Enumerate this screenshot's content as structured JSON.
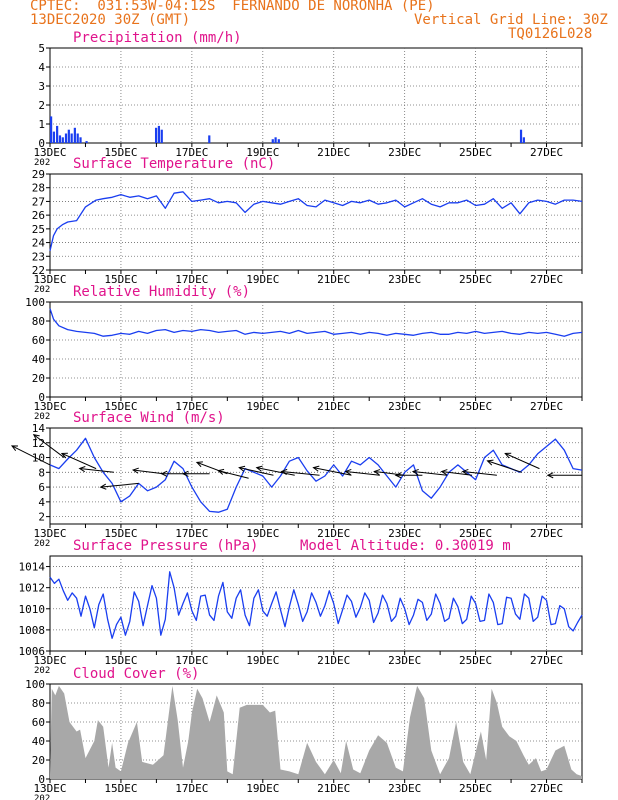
{
  "header": {
    "line1": "CPTEC:  031:53W-04:12S  FERNANDO DE NORONHA (PE)",
    "date": "13DEC2020 30Z (GMT)",
    "grid_note": "Vertical Grid Line: 30Z",
    "code": "TQ0126L028"
  },
  "colors": {
    "header": "#e8731c",
    "title": "#e0148c",
    "line": "#1a3ef0",
    "bar": "#1a3ef0",
    "cloud": "#a8a8a8",
    "grid": "#6e6e6e",
    "arrow": "#000000"
  },
  "x_ticks": [
    "13DEC",
    "15DEC",
    "17DEC",
    "19DEC",
    "21DEC",
    "23DEC",
    "25DEC",
    "27DEC"
  ],
  "x_stub": "202",
  "chart_data": [
    {
      "id": "precip",
      "type": "bar",
      "title": "Precipitation (mm/h)",
      "ylim": [
        0,
        5
      ],
      "yticks": [
        0,
        1,
        2,
        3,
        4,
        5
      ],
      "t": [
        0.0,
        0.08,
        0.17,
        0.25,
        0.33,
        0.42,
        0.5,
        0.58,
        0.67,
        0.75,
        0.83,
        1.0,
        2.96,
        3.04,
        3.12,
        4.46,
        6.25,
        6.33,
        6.42,
        13.25,
        13.33
      ],
      "values": [
        1.4,
        0.6,
        0.9,
        0.4,
        0.3,
        0.5,
        0.7,
        0.5,
        0.8,
        0.5,
        0.3,
        0.1,
        0.8,
        0.9,
        0.7,
        0.4,
        0.2,
        0.3,
        0.2,
        0.7,
        0.3
      ]
    },
    {
      "id": "temp",
      "type": "line",
      "title": "Surface Temperature (nC)",
      "ylim": [
        22,
        29
      ],
      "yticks": [
        22,
        23,
        24,
        25,
        26,
        27,
        28,
        29
      ],
      "t": [
        0,
        0.1,
        0.2,
        0.35,
        0.5,
        0.75,
        1.0,
        1.3,
        1.5,
        1.75,
        2.0,
        2.25,
        2.5,
        2.75,
        3.0,
        3.25,
        3.5,
        3.75,
        4.0,
        4.25,
        4.5,
        4.75,
        5.0,
        5.25,
        5.5,
        5.75,
        6.0,
        6.25,
        6.5,
        6.75,
        7.0,
        7.25,
        7.5,
        7.75,
        8.0,
        8.25,
        8.5,
        8.75,
        9.0,
        9.25,
        9.5,
        9.75,
        10.0,
        10.25,
        10.5,
        10.75,
        11.0,
        11.25,
        11.5,
        11.75,
        12.0,
        12.25,
        12.5,
        12.75,
        13.0,
        13.25,
        13.5,
        13.75,
        14.0,
        14.25,
        14.5,
        14.75,
        15.0
      ],
      "values": [
        23.4,
        24.5,
        25.0,
        25.3,
        25.5,
        25.6,
        26.6,
        27.1,
        27.2,
        27.3,
        27.5,
        27.3,
        27.4,
        27.2,
        27.4,
        26.5,
        27.6,
        27.7,
        27.0,
        27.1,
        27.2,
        26.9,
        27.0,
        26.9,
        26.2,
        26.8,
        27.0,
        26.9,
        26.8,
        27.0,
        27.2,
        26.7,
        26.6,
        27.1,
        26.9,
        26.7,
        27.0,
        26.9,
        27.1,
        26.8,
        26.9,
        27.1,
        26.6,
        26.9,
        27.2,
        26.8,
        26.6,
        26.9,
        26.9,
        27.1,
        26.7,
        26.8,
        27.2,
        26.5,
        26.9,
        26.1,
        26.9,
        27.1,
        27.0,
        26.8,
        27.1,
        27.1,
        27.0
      ]
    },
    {
      "id": "rh",
      "type": "line",
      "title": "Relative Humidity (%)",
      "ylim": [
        0,
        100
      ],
      "yticks": [
        0,
        20,
        40,
        60,
        80,
        100
      ],
      "t": [
        0,
        0.1,
        0.25,
        0.5,
        0.75,
        1.0,
        1.25,
        1.5,
        1.75,
        2.0,
        2.25,
        2.5,
        2.75,
        3.0,
        3.25,
        3.5,
        3.75,
        4.0,
        4.25,
        4.5,
        4.75,
        5.0,
        5.25,
        5.5,
        5.75,
        6.0,
        6.25,
        6.5,
        6.75,
        7.0,
        7.25,
        7.5,
        7.75,
        8.0,
        8.25,
        8.5,
        8.75,
        9.0,
        9.25,
        9.5,
        9.75,
        10.0,
        10.25,
        10.5,
        10.75,
        11.0,
        11.25,
        11.5,
        11.75,
        12.0,
        12.25,
        12.5,
        12.75,
        13.0,
        13.25,
        13.5,
        13.75,
        14.0,
        14.25,
        14.5,
        14.75,
        15.0
      ],
      "values": [
        93,
        82,
        75,
        71,
        69,
        68,
        67,
        64,
        65,
        67,
        66,
        69,
        67,
        70,
        71,
        68,
        70,
        69,
        71,
        70,
        68,
        69,
        70,
        66,
        68,
        67,
        68,
        69,
        67,
        70,
        67,
        68,
        69,
        66,
        67,
        68,
        66,
        68,
        67,
        65,
        67,
        66,
        65,
        67,
        68,
        66,
        66,
        68,
        67,
        69,
        67,
        68,
        69,
        67,
        66,
        68,
        67,
        68,
        66,
        64,
        67,
        68
      ]
    },
    {
      "id": "wind",
      "type": "line",
      "title": "Surface Wind (m/s)",
      "ylim": [
        1,
        14
      ],
      "yticks": [
        2,
        4,
        6,
        8,
        10,
        12,
        14
      ],
      "t": [
        0,
        0.25,
        0.5,
        0.75,
        1.0,
        1.25,
        1.5,
        1.75,
        2.0,
        2.25,
        2.5,
        2.75,
        3.0,
        3.25,
        3.5,
        3.75,
        4.0,
        4.25,
        4.5,
        4.75,
        5.0,
        5.25,
        5.5,
        5.75,
        6.0,
        6.25,
        6.5,
        6.75,
        7.0,
        7.25,
        7.5,
        7.75,
        8.0,
        8.25,
        8.5,
        8.75,
        9.0,
        9.25,
        9.5,
        9.75,
        10.0,
        10.25,
        10.5,
        10.75,
        11.0,
        11.25,
        11.5,
        11.75,
        12.0,
        12.25,
        12.5,
        12.75,
        13.0,
        13.25,
        13.5,
        13.75,
        14.0,
        14.25,
        14.5,
        14.75,
        15.0
      ],
      "values": [
        9.0,
        8.5,
        9.8,
        11.0,
        12.6,
        10.0,
        8.0,
        6.5,
        4.0,
        4.8,
        6.5,
        5.5,
        6.0,
        7.0,
        9.5,
        8.5,
        6.0,
        4.0,
        2.7,
        2.6,
        3.0,
        6.0,
        8.5,
        8.0,
        7.5,
        6.0,
        7.5,
        9.5,
        10.0,
        8.2,
        6.8,
        7.5,
        9.0,
        7.5,
        9.5,
        9.0,
        10.0,
        9.0,
        7.5,
        6.0,
        8.0,
        9.0,
        5.5,
        4.5,
        6.0,
        8.0,
        9.0,
        8.0,
        7.0,
        10.0,
        11.0,
        9.0,
        8.5,
        8.0,
        9.0,
        10.5,
        11.5,
        12.5,
        11.0,
        8.5,
        8.3
      ],
      "barbs": [
        {
          "t": 0.0,
          "y": 9.0,
          "u": -1.0,
          "v": 0.5
        },
        {
          "t": 0.4,
          "y": 10.0,
          "u": -0.8,
          "v": 0.6
        },
        {
          "t": 1.3,
          "y": 8.5,
          "u": -0.9,
          "v": 0.4
        },
        {
          "t": 1.8,
          "y": 8.0,
          "u": -0.9,
          "v": 0.1
        },
        {
          "t": 2.5,
          "y": 6.5,
          "u": -1.0,
          "v": -0.1
        },
        {
          "t": 3.2,
          "y": 7.8,
          "u": -0.8,
          "v": 0.1
        },
        {
          "t": 3.9,
          "y": 7.8,
          "u": -0.7,
          "v": 0.0
        },
        {
          "t": 4.5,
          "y": 7.8,
          "u": -0.7,
          "v": 0.0
        },
        {
          "t": 5.0,
          "y": 7.8,
          "u": -0.8,
          "v": 0.3
        },
        {
          "t": 5.6,
          "y": 7.2,
          "u": -0.8,
          "v": 0.2
        },
        {
          "t": 6.3,
          "y": 7.6,
          "u": -0.9,
          "v": 0.2
        },
        {
          "t": 6.9,
          "y": 7.6,
          "u": -1.0,
          "v": 0.2
        },
        {
          "t": 7.6,
          "y": 7.6,
          "u": -1.0,
          "v": 0.1
        },
        {
          "t": 8.5,
          "y": 7.6,
          "u": -1.0,
          "v": 0.2
        },
        {
          "t": 9.3,
          "y": 7.6,
          "u": -0.9,
          "v": 0.1
        },
        {
          "t": 10.0,
          "y": 7.6,
          "u": -0.8,
          "v": 0.1
        },
        {
          "t": 10.5,
          "y": 7.6,
          "u": -0.7,
          "v": 0.0
        },
        {
          "t": 11.2,
          "y": 7.6,
          "u": -0.9,
          "v": 0.1
        },
        {
          "t": 11.9,
          "y": 7.6,
          "u": -0.8,
          "v": 0.1
        },
        {
          "t": 12.6,
          "y": 7.6,
          "u": -0.9,
          "v": 0.1
        },
        {
          "t": 13.3,
          "y": 8.0,
          "u": -0.9,
          "v": 0.3
        },
        {
          "t": 13.8,
          "y": 8.5,
          "u": -0.9,
          "v": 0.4
        },
        {
          "t": 15.0,
          "y": 7.6,
          "u": -0.9,
          "v": 0.0
        }
      ]
    },
    {
      "id": "press",
      "type": "line",
      "title": "Surface Pressure (hPa)",
      "annotation": "Model Altitude: 0.30019 m",
      "ylim": [
        1006,
        1015
      ],
      "yticks": [
        1006,
        1008,
        1010,
        1012,
        1014
      ],
      "t": [
        0,
        0.125,
        0.25,
        0.375,
        0.5,
        0.625,
        0.75,
        0.875,
        1.0,
        1.125,
        1.25,
        1.375,
        1.5,
        1.625,
        1.75,
        1.875,
        2.0,
        2.125,
        2.25,
        2.375,
        2.5,
        2.625,
        2.75,
        2.875,
        3.0,
        3.125,
        3.25,
        3.375,
        3.5,
        3.625,
        3.75,
        3.875,
        4.0,
        4.125,
        4.25,
        4.375,
        4.5,
        4.625,
        4.75,
        4.875,
        5.0,
        5.125,
        5.25,
        5.375,
        5.5,
        5.625,
        5.75,
        5.875,
        6.0,
        6.125,
        6.25,
        6.375,
        6.5,
        6.625,
        6.75,
        6.875,
        7.0,
        7.125,
        7.25,
        7.375,
        7.5,
        7.625,
        7.75,
        7.875,
        8.0,
        8.125,
        8.25,
        8.375,
        8.5,
        8.625,
        8.75,
        8.875,
        9.0,
        9.125,
        9.25,
        9.375,
        9.5,
        9.625,
        9.75,
        9.875,
        10.0,
        10.125,
        10.25,
        10.375,
        10.5,
        10.625,
        10.75,
        10.875,
        11.0,
        11.125,
        11.25,
        11.375,
        11.5,
        11.625,
        11.75,
        11.875,
        12.0,
        12.125,
        12.25,
        12.375,
        12.5,
        12.625,
        12.75,
        12.875,
        13.0,
        13.125,
        13.25,
        13.375,
        13.5,
        13.625,
        13.75,
        13.875,
        14.0,
        14.125,
        14.25,
        14.375,
        14.5,
        14.625,
        14.75,
        14.875,
        15.0
      ],
      "values": [
        1013.0,
        1012.4,
        1012.8,
        1011.7,
        1010.8,
        1011.5,
        1011.0,
        1009.3,
        1011.2,
        1010.0,
        1008.2,
        1010.4,
        1011.4,
        1009.0,
        1007.2,
        1008.5,
        1009.2,
        1007.5,
        1008.8,
        1011.6,
        1010.7,
        1008.4,
        1010.3,
        1012.2,
        1011.0,
        1007.5,
        1009.0,
        1013.5,
        1012.0,
        1009.4,
        1010.5,
        1011.5,
        1009.8,
        1008.9,
        1011.2,
        1011.3,
        1009.4,
        1008.9,
        1011.2,
        1012.5,
        1009.7,
        1009.1,
        1011.0,
        1011.8,
        1009.4,
        1008.4,
        1011.0,
        1011.8,
        1009.8,
        1009.3,
        1010.5,
        1011.6,
        1009.9,
        1008.3,
        1010.2,
        1011.8,
        1010.4,
        1008.8,
        1009.7,
        1011.5,
        1010.6,
        1009.3,
        1010.3,
        1011.7,
        1010.5,
        1008.6,
        1009.9,
        1011.3,
        1010.7,
        1009.2,
        1010.1,
        1011.5,
        1010.8,
        1008.7,
        1009.6,
        1011.3,
        1010.5,
        1008.8,
        1009.3,
        1011.0,
        1010.0,
        1008.5,
        1009.4,
        1010.9,
        1010.6,
        1008.9,
        1009.5,
        1011.4,
        1010.5,
        1008.8,
        1009.1,
        1011.0,
        1010.2,
        1008.6,
        1009.0,
        1011.2,
        1010.5,
        1008.8,
        1008.9,
        1011.4,
        1010.6,
        1008.5,
        1008.6,
        1011.1,
        1011.0,
        1009.5,
        1009.0,
        1011.4,
        1011.0,
        1008.8,
        1009.2,
        1011.2,
        1010.8,
        1008.5,
        1008.6,
        1010.3,
        1010.0,
        1008.3,
        1007.9,
        1008.7,
        1009.4
      ]
    },
    {
      "id": "cloud",
      "type": "area",
      "title": "Cloud Cover (%)",
      "ylim": [
        0,
        100
      ],
      "yticks": [
        0,
        20,
        40,
        60,
        80,
        100
      ],
      "t": [
        0.0,
        0.05,
        0.15,
        0.25,
        0.4,
        0.55,
        0.75,
        0.85,
        1.0,
        1.25,
        1.35,
        1.5,
        1.65,
        1.75,
        1.85,
        2.0,
        2.2,
        2.45,
        2.6,
        2.9,
        3.2,
        3.45,
        3.6,
        3.75,
        3.9,
        4.0,
        4.15,
        4.3,
        4.5,
        4.7,
        4.9,
        5.0,
        5.15,
        5.35,
        5.55,
        5.75,
        6.0,
        6.2,
        6.35,
        6.5,
        6.75,
        7.0,
        7.25,
        7.35,
        7.5,
        7.75,
        8.0,
        8.2,
        8.35,
        8.55,
        8.75,
        9.0,
        9.25,
        9.5,
        9.75,
        9.95,
        10.15,
        10.35,
        10.55,
        10.75,
        11.0,
        11.25,
        11.45,
        11.65,
        11.85,
        12.0,
        12.15,
        12.3,
        12.45,
        12.6,
        12.75,
        12.95,
        13.15,
        13.35,
        13.5,
        13.7,
        13.85,
        14.0,
        14.25,
        14.5,
        14.7,
        14.85,
        15.0
      ],
      "values": [
        5,
        95,
        88,
        98,
        90,
        60,
        50,
        52,
        22,
        40,
        62,
        55,
        12,
        38,
        12,
        8,
        38,
        60,
        18,
        15,
        25,
        98,
        62,
        12,
        40,
        70,
        95,
        85,
        60,
        88,
        70,
        8,
        5,
        75,
        78,
        78,
        78,
        70,
        72,
        10,
        8,
        5,
        38,
        30,
        18,
        5,
        20,
        6,
        40,
        10,
        6,
        30,
        46,
        38,
        12,
        8,
        65,
        98,
        85,
        30,
        5,
        22,
        60,
        18,
        5,
        28,
        50,
        20,
        95,
        80,
        55,
        45,
        40,
        25,
        15,
        22,
        8,
        10,
        30,
        35,
        10,
        5,
        3
      ]
    }
  ]
}
